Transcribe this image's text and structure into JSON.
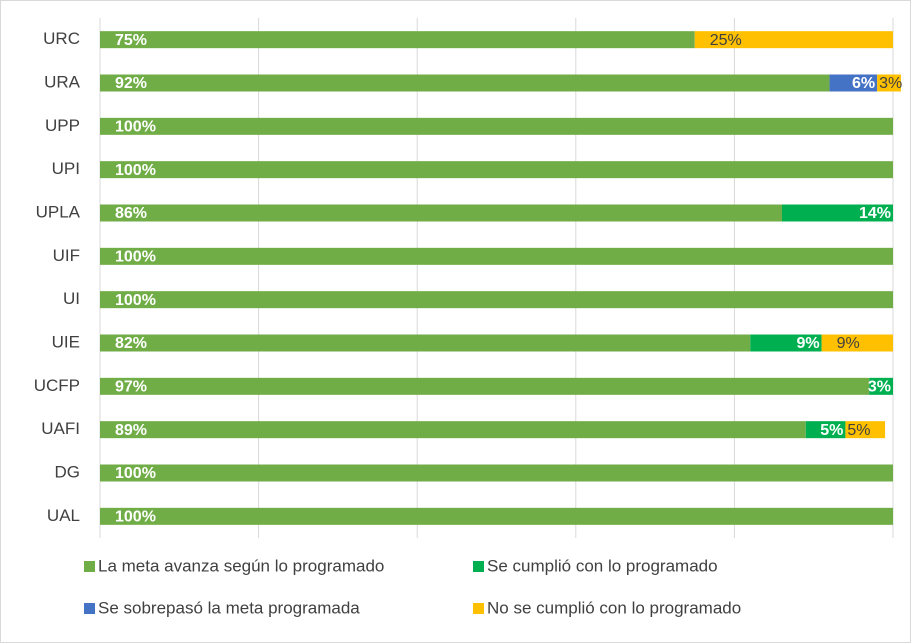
{
  "chart_data": {
    "type": "stacked_barh",
    "categories": [
      "URC",
      "URA",
      "UPP",
      "UPI",
      "UPLA",
      "UIF",
      "UI",
      "UIE",
      "UCFP",
      "UAFI",
      "DG",
      "UAL"
    ],
    "series": [
      {
        "name": "La meta avanza según lo programado",
        "color": "#70ad47",
        "values": [
          75,
          92,
          100,
          100,
          86,
          100,
          100,
          82,
          97,
          89,
          100,
          100
        ],
        "value_labels": [
          "75%",
          "92%",
          "100%",
          "100%",
          "86%",
          "100%",
          "100%",
          "82%",
          "97%",
          "89%",
          "100%",
          "100%"
        ]
      },
      {
        "name": "Se cumplió con lo programado",
        "color": "#00b050",
        "values": [
          null,
          null,
          null,
          null,
          14,
          null,
          null,
          9,
          3,
          5,
          null,
          null
        ],
        "value_labels": [
          null,
          null,
          null,
          null,
          "14%",
          null,
          null,
          "9%",
          "3%",
          "5%",
          null,
          null
        ]
      },
      {
        "name": "Se sobrepasó la meta programada",
        "color": "#4472c4",
        "values": [
          null,
          6,
          null,
          null,
          null,
          null,
          null,
          null,
          null,
          null,
          null,
          null
        ],
        "value_labels": [
          null,
          "6%",
          null,
          null,
          null,
          null,
          null,
          null,
          null,
          null,
          null,
          null
        ]
      },
      {
        "name": "No se cumplió con lo programado",
        "color": "#ffc000",
        "values": [
          25,
          3,
          null,
          null,
          null,
          null,
          null,
          9,
          null,
          5,
          null,
          null
        ],
        "value_labels": [
          "25%",
          "3%",
          null,
          null,
          null,
          null,
          null,
          "9%",
          null,
          "5%",
          null,
          null
        ]
      }
    ],
    "xlim": [
      0,
      100
    ],
    "xticks": [
      0,
      20,
      40,
      60,
      80,
      100
    ],
    "grid": true
  }
}
